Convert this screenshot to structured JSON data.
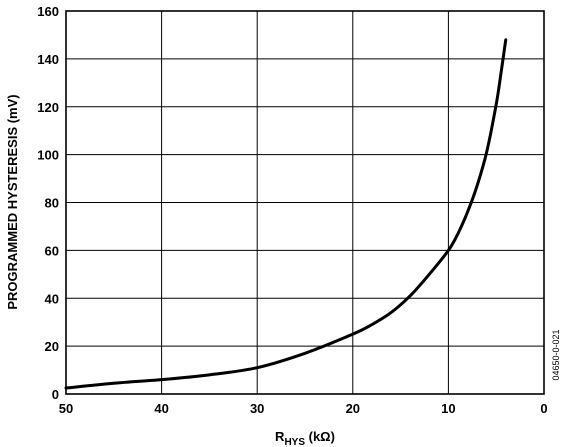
{
  "chart_data": {
    "type": "line",
    "title": "",
    "xlabel_main": "R",
    "xlabel_sub": "HYS",
    "xlabel_unit": " (kΩ)",
    "ylabel": "PROGRAMMED HYSTERESIS (mV)",
    "xlim": [
      50,
      0
    ],
    "ylim": [
      0,
      160
    ],
    "x_ticks": [
      50,
      40,
      30,
      20,
      10,
      0
    ],
    "y_ticks": [
      0,
      20,
      40,
      60,
      80,
      100,
      120,
      140,
      160
    ],
    "grid": true,
    "series": [
      {
        "x": [
          50,
          45,
          40,
          35,
          30,
          25,
          20,
          18,
          16,
          14,
          12,
          10,
          9,
          8,
          7,
          6,
          5,
          4.5,
          4
        ],
        "y": [
          2.5,
          4.5,
          6,
          8,
          11,
          17,
          25,
          29,
          34,
          41,
          50,
          60,
          67,
          76,
          87,
          101,
          121,
          134,
          148
        ]
      }
    ],
    "figure_code": "04650-0-021"
  }
}
